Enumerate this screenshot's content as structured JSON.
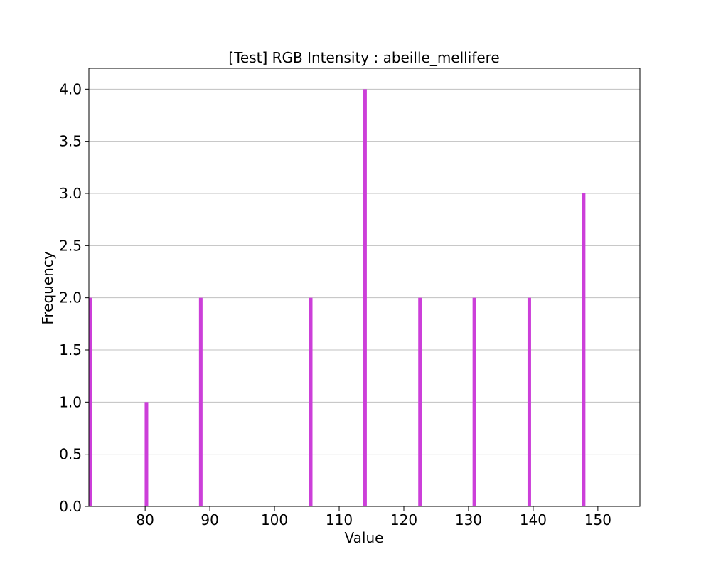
{
  "chart_data": {
    "type": "bar",
    "title": "[Test] RGB Intensity : abeille_mellifere",
    "xlabel": "Value",
    "ylabel": "Frequency",
    "xlim": [
      71.3,
      156.5
    ],
    "ylim": [
      0,
      4.2
    ],
    "xticks": [
      80,
      90,
      100,
      110,
      120,
      130,
      140,
      150
    ],
    "yticks": [
      0.0,
      0.5,
      1.0,
      1.5,
      2.0,
      2.5,
      3.0,
      3.5,
      4.0
    ],
    "xtick_labels": [
      "80",
      "90",
      "100",
      "110",
      "120",
      "130",
      "140",
      "150"
    ],
    "ytick_labels": [
      "0.0",
      "0.5",
      "1.0",
      "1.5",
      "2.0",
      "2.5",
      "3.0",
      "3.5",
      "4.0"
    ],
    "grid": "horizontal",
    "bar_color": "#cc3fd9",
    "x": [
      71.5,
      80.2,
      88.6,
      105.6,
      114.0,
      122.5,
      130.9,
      139.4,
      147.8
    ],
    "values": [
      2,
      1,
      2,
      2,
      4,
      2,
      2,
      2,
      3
    ]
  }
}
